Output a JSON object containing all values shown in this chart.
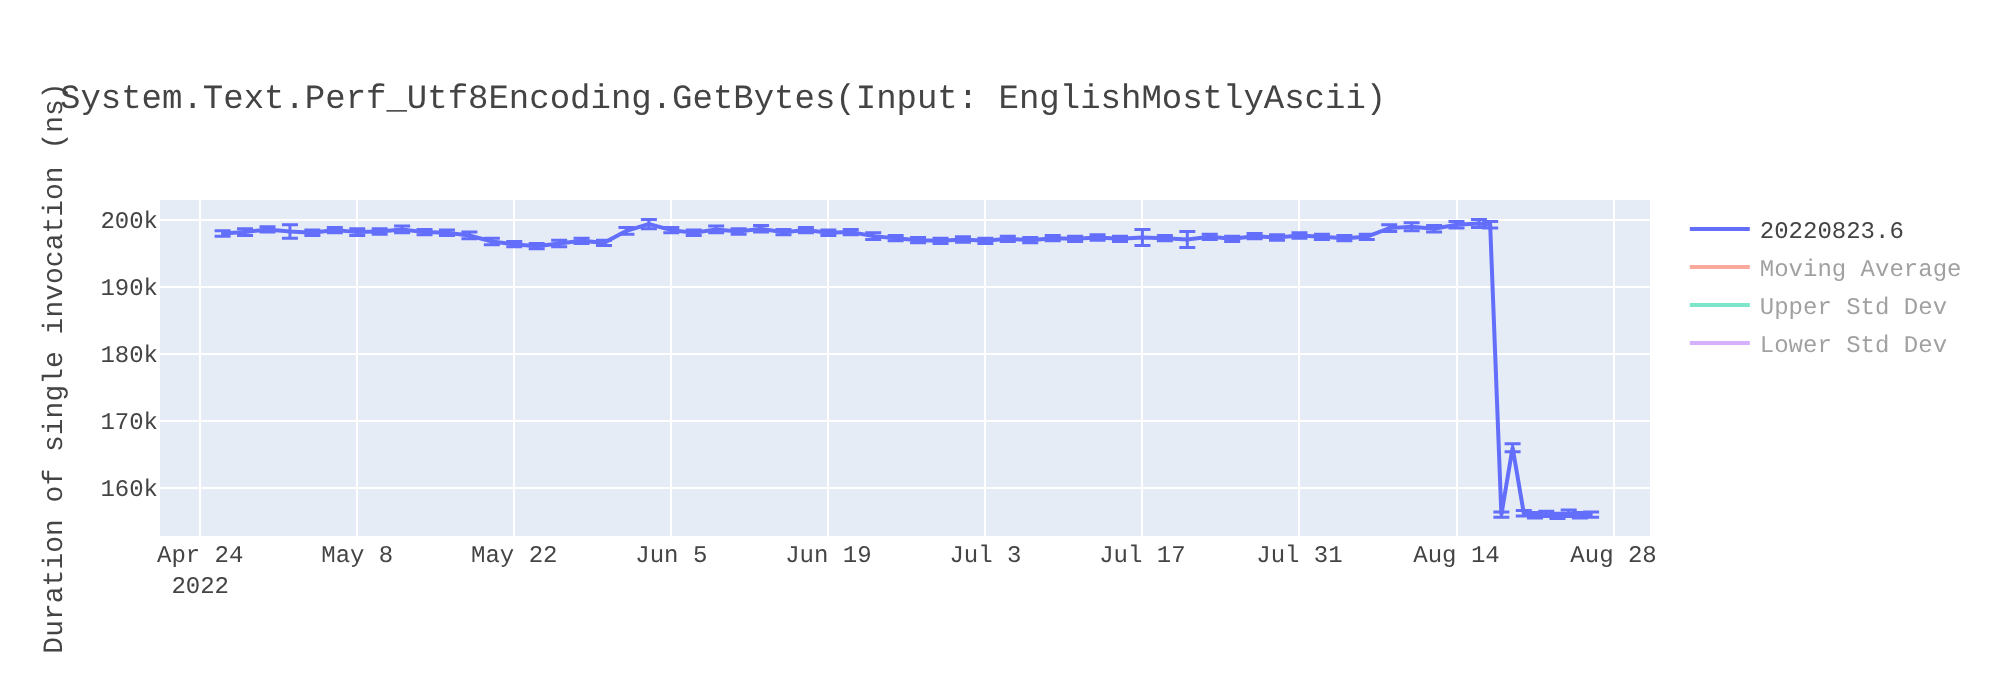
{
  "chart_data": {
    "type": "line",
    "title": "System.Text.Perf_Utf8Encoding.GetBytes(Input: EnglishMostlyAscii)",
    "ylabel": "Duration of single invocation (ns)",
    "x": [
      "2022-04-26",
      "2022-04-28",
      "2022-04-30",
      "2022-05-02",
      "2022-05-04",
      "2022-05-06",
      "2022-05-08",
      "2022-05-10",
      "2022-05-12",
      "2022-05-14",
      "2022-05-16",
      "2022-05-18",
      "2022-05-20",
      "2022-05-22",
      "2022-05-24",
      "2022-05-26",
      "2022-05-28",
      "2022-05-30",
      "2022-06-01",
      "2022-06-03",
      "2022-06-05",
      "2022-06-07",
      "2022-06-09",
      "2022-06-11",
      "2022-06-13",
      "2022-06-15",
      "2022-06-17",
      "2022-06-19",
      "2022-06-21",
      "2022-06-23",
      "2022-06-25",
      "2022-06-27",
      "2022-06-29",
      "2022-07-01",
      "2022-07-03",
      "2022-07-05",
      "2022-07-07",
      "2022-07-09",
      "2022-07-11",
      "2022-07-13",
      "2022-07-15",
      "2022-07-17",
      "2022-07-19",
      "2022-07-21",
      "2022-07-23",
      "2022-07-25",
      "2022-07-27",
      "2022-07-29",
      "2022-07-31",
      "2022-08-02",
      "2022-08-04",
      "2022-08-06",
      "2022-08-08",
      "2022-08-10",
      "2022-08-12",
      "2022-08-14",
      "2022-08-16",
      "2022-08-17",
      "2022-08-18",
      "2022-08-19",
      "2022-08-20",
      "2022-08-21",
      "2022-08-22",
      "2022-08-23",
      "2022-08-24",
      "2022-08-25",
      "2022-08-26"
    ],
    "series": [
      {
        "name": "20220823.6",
        "color": "#636efa",
        "values": [
          198000,
          198200,
          198600,
          198300,
          198100,
          198500,
          198200,
          198300,
          198600,
          198200,
          198100,
          197700,
          196800,
          196400,
          196100,
          196500,
          196900,
          196600,
          198400,
          199400,
          198500,
          198100,
          198600,
          198300,
          198700,
          198200,
          198500,
          198100,
          198200,
          197600,
          197300,
          197000,
          196900,
          197100,
          196900,
          197200,
          197000,
          197300,
          197200,
          197400,
          197200,
          197400,
          197300,
          197100,
          197500,
          197200,
          197600,
          197400,
          197700,
          197500,
          197300,
          197500,
          198800,
          199000,
          198700,
          199300,
          199500,
          199300,
          156000,
          166000,
          156200,
          155900,
          156100,
          155800,
          156200,
          155900,
          156000
        ],
        "errors": [
          400,
          500,
          400,
          1000,
          400,
          400,
          500,
          400,
          500,
          400,
          400,
          500,
          500,
          400,
          400,
          500,
          400,
          400,
          500,
          700,
          400,
          400,
          500,
          400,
          500,
          400,
          400,
          400,
          400,
          500,
          400,
          400,
          400,
          400,
          400,
          400,
          400,
          400,
          400,
          400,
          400,
          1200,
          400,
          1200,
          400,
          400,
          400,
          400,
          400,
          400,
          400,
          400,
          500,
          600,
          500,
          500,
          600,
          500,
          400,
          600,
          400,
          400,
          400,
          400,
          500,
          400,
          400
        ]
      },
      {
        "name": "Moving Average",
        "color": "#ef553b",
        "values": [
          null,
          null,
          null,
          null,
          null,
          null,
          null,
          null,
          null,
          null,
          null,
          null,
          null,
          null,
          null,
          null,
          null,
          null,
          null,
          null,
          null,
          null,
          null,
          null,
          null,
          null,
          null,
          null,
          null,
          null,
          null,
          null,
          null,
          null,
          null,
          null,
          null,
          null,
          null,
          null,
          null,
          null,
          null,
          null,
          null,
          null,
          null,
          null,
          null,
          null,
          null,
          null,
          null,
          null,
          null,
          null,
          null,
          null,
          null,
          null,
          null,
          null,
          null,
          null,
          null,
          null,
          null
        ]
      },
      {
        "name": "Upper Std Dev",
        "color": "#00cc96",
        "values": [
          null,
          null,
          null,
          null,
          null,
          null,
          null,
          null,
          null,
          null,
          null,
          null,
          null,
          null,
          null,
          null,
          null,
          null,
          null,
          null,
          null,
          null,
          null,
          null,
          null,
          null,
          null,
          null,
          null,
          null,
          null,
          null,
          null,
          null,
          null,
          null,
          null,
          null,
          null,
          null,
          null,
          null,
          null,
          null,
          null,
          null,
          null,
          null,
          null,
          null,
          null,
          null,
          null,
          null,
          null,
          null,
          null,
          null,
          null,
          null,
          null,
          null,
          null,
          null,
          null,
          null,
          null
        ]
      },
      {
        "name": "Lower Std Dev",
        "color": "#ab63fa",
        "values": [
          null,
          null,
          null,
          null,
          null,
          null,
          null,
          null,
          null,
          null,
          null,
          null,
          null,
          null,
          null,
          null,
          null,
          null,
          null,
          null,
          null,
          null,
          null,
          null,
          null,
          null,
          null,
          null,
          null,
          null,
          null,
          null,
          null,
          null,
          null,
          null,
          null,
          null,
          null,
          null,
          null,
          null,
          null,
          null,
          null,
          null,
          null,
          null,
          null,
          null,
          null,
          null,
          null,
          null,
          null,
          null,
          null,
          null,
          null,
          null,
          null,
          null,
          null,
          null,
          null,
          null,
          null
        ]
      }
    ],
    "xlim": [
      "2022-04-20T10:00",
      "2022-08-31T06:00"
    ],
    "xticks": [
      {
        "value": "2022-04-24",
        "label": "Apr 24\n2022"
      },
      {
        "value": "2022-05-08",
        "label": "May 8"
      },
      {
        "value": "2022-05-22",
        "label": "May 22"
      },
      {
        "value": "2022-06-05",
        "label": "Jun 5"
      },
      {
        "value": "2022-06-19",
        "label": "Jun 19"
      },
      {
        "value": "2022-07-03",
        "label": "Jul 3"
      },
      {
        "value": "2022-07-17",
        "label": "Jul 17"
      },
      {
        "value": "2022-07-31",
        "label": "Jul 31"
      },
      {
        "value": "2022-08-14",
        "label": "Aug 14"
      },
      {
        "value": "2022-08-28",
        "label": "Aug 28"
      }
    ],
    "ylim": [
      152800,
      203000
    ],
    "yticks": [
      {
        "value": 160000,
        "label": "160k"
      },
      {
        "value": 170000,
        "label": "170k"
      },
      {
        "value": 180000,
        "label": "180k"
      },
      {
        "value": 190000,
        "label": "190k"
      },
      {
        "value": 200000,
        "label": "200k"
      }
    ],
    "grid": true,
    "legend": "top right",
    "marker": "none",
    "line_style": "solid"
  }
}
